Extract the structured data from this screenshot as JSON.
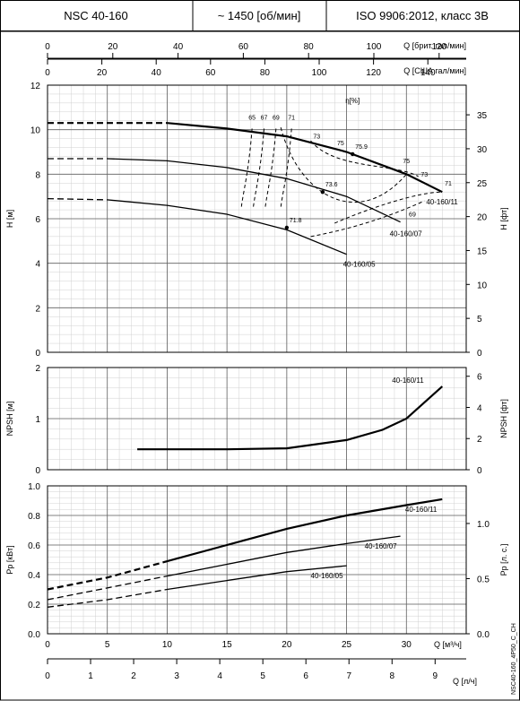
{
  "header": {
    "model": "NSC 40-160",
    "speed": "~ 1450 [об/мин]",
    "standard": "ISO 9906:2012, класс 3B"
  },
  "footer_code": "NSC40-160_4P50_C_CH",
  "axes": {
    "q_uk": {
      "label": "Q [брит. гал/мин]",
      "ticks": [
        "0",
        "20",
        "40",
        "60",
        "80",
        "100",
        "120"
      ]
    },
    "q_us": {
      "label": "Q [США гал/мин]",
      "ticks": [
        "0",
        "20",
        "40",
        "60",
        "80",
        "100",
        "120",
        "140"
      ]
    },
    "q_m3h": {
      "label": "Q [м³/ч]",
      "ticks": [
        "0",
        "5",
        "10",
        "15",
        "20",
        "25",
        "30"
      ]
    },
    "q_ls": {
      "label": "Q [л/ч]",
      "ticks": [
        "0",
        "1",
        "2",
        "3",
        "4",
        "5",
        "6",
        "7",
        "8",
        "9"
      ]
    },
    "h_m": {
      "label": "H [м]",
      "ticks": [
        "0",
        "2",
        "4",
        "6",
        "8",
        "10",
        "12"
      ]
    },
    "h_ft": {
      "label": "H [фт]",
      "ticks": [
        "0",
        "5",
        "10",
        "15",
        "20",
        "25",
        "30",
        "35"
      ]
    },
    "npsh_m": {
      "label": "NPSH [м]",
      "ticks": [
        "0",
        "1",
        "2"
      ]
    },
    "npsh_ft": {
      "label": "NPSH [фт]",
      "ticks": [
        "0",
        "2",
        "4",
        "6"
      ]
    },
    "p_kw": {
      "label": "Pp [кВт]",
      "ticks": [
        "0.0",
        "0.2",
        "0.4",
        "0.6",
        "0.8",
        "1.0"
      ]
    },
    "p_hp": {
      "label": "Pp [л. с.]",
      "ticks": [
        "0.0",
        "0.5",
        "1.0"
      ]
    }
  },
  "chart_data": [
    {
      "type": "line",
      "title": "",
      "xlabel": "Q [м³/ч]",
      "ylabel": "H [м]",
      "xlim": [
        0,
        35
      ],
      "ylim": [
        0,
        12
      ],
      "grid": true,
      "efficiency_label": "η[%]",
      "series": [
        {
          "name": "40-160/11",
          "x": [
            0,
            5,
            10,
            15,
            20,
            25,
            30,
            33
          ],
          "y": [
            10.3,
            10.3,
            10.3,
            10.05,
            9.7,
            9.0,
            8.0,
            7.2
          ]
        },
        {
          "name": "40-160/07",
          "x": [
            0,
            5,
            10,
            15,
            20,
            25,
            29.5
          ],
          "y": [
            8.7,
            8.7,
            8.6,
            8.3,
            7.8,
            7.0,
            5.85
          ]
        },
        {
          "name": "40-160/05",
          "x": [
            0,
            5,
            10,
            15,
            20,
            25
          ],
          "y": [
            6.9,
            6.85,
            6.6,
            6.2,
            5.5,
            4.4
          ]
        }
      ],
      "efficiency_iso_labels": [
        "65",
        "67",
        "69",
        "71",
        "73",
        "75",
        "75.9",
        "75",
        "73",
        "71",
        "73.6",
        "71.8",
        "69"
      ],
      "best_efficiency_points": [
        {
          "x": 25.5,
          "y": 8.9,
          "label": "75.9"
        },
        {
          "x": 23,
          "y": 7.2,
          "label": "73.6"
        },
        {
          "x": 20,
          "y": 5.6,
          "label": "71.8"
        }
      ]
    },
    {
      "type": "line",
      "title": "",
      "xlabel": "Q [м³/ч]",
      "ylabel": "NPSH [м]",
      "xlim": [
        0,
        35
      ],
      "ylim": [
        0,
        2
      ],
      "grid": true,
      "series": [
        {
          "name": "40-160/11",
          "x": [
            7.5,
            10,
            15,
            20,
            25,
            28,
            30,
            33
          ],
          "y": [
            0.4,
            0.4,
            0.4,
            0.42,
            0.58,
            0.78,
            1.0,
            1.63
          ]
        }
      ]
    },
    {
      "type": "line",
      "title": "",
      "xlabel": "Q [м³/ч]",
      "ylabel": "Pp [кВт]",
      "xlim": [
        0,
        35
      ],
      "ylim": [
        0,
        1.0
      ],
      "grid": true,
      "series": [
        {
          "name": "40-160/11",
          "x": [
            0,
            5,
            10,
            15,
            20,
            25,
            30,
            33
          ],
          "y": [
            0.3,
            0.38,
            0.49,
            0.6,
            0.71,
            0.8,
            0.87,
            0.91
          ]
        },
        {
          "name": "40-160/07",
          "x": [
            0,
            5,
            10,
            15,
            20,
            25,
            29.5
          ],
          "y": [
            0.23,
            0.31,
            0.39,
            0.47,
            0.55,
            0.61,
            0.66
          ]
        },
        {
          "name": "40-160/05",
          "x": [
            0,
            5,
            10,
            15,
            20,
            25
          ],
          "y": [
            0.18,
            0.23,
            0.3,
            0.36,
            0.42,
            0.46
          ]
        }
      ]
    }
  ]
}
